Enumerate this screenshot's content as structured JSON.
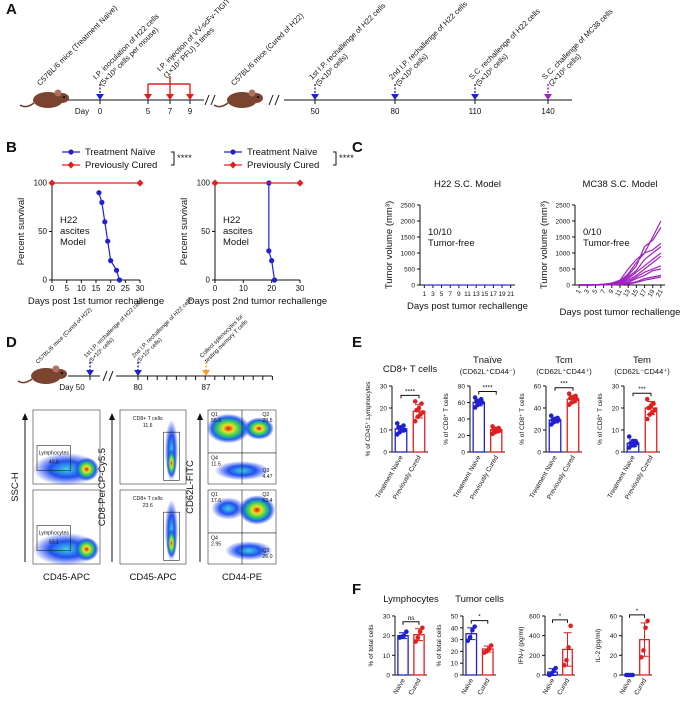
{
  "panel_labels": [
    "A",
    "B",
    "C",
    "D",
    "E",
    "F"
  ],
  "timeline_a": {
    "mice": [
      "C57BL/6 mice (Treatment Naïve)",
      "C57BL/6 mice (Cured of H22)"
    ],
    "day_word": "Day",
    "days": [
      "0",
      "5",
      "7",
      "9",
      "50",
      "80",
      "110",
      "140"
    ],
    "events": [
      {
        "text": [
          "I.P. inoculation of H22 cells",
          "(5×10⁶ cells per mouse)"
        ]
      },
      {
        "text": [
          "I.P. injection of VV-scFv-TIGIT",
          "(1×10⁷ PFU) 3 times"
        ]
      },
      {
        "text": [
          "1st I.P. rechallenge of H22 cells",
          "(5×10⁶ cells)"
        ]
      },
      {
        "text": [
          "2nd I.P. rechallenge of H22 cells",
          "(5×10⁶ cells)"
        ]
      },
      {
        "text": [
          "S.C. rechallenge of H22 cells",
          "(5×10⁶ cells)"
        ]
      },
      {
        "text": [
          "S.C. challenge of MC38 cells",
          "(2×10⁶ cells)"
        ]
      }
    ]
  },
  "timeline_d": {
    "mouse": "C57BL/6 mice (Cured of H22)",
    "days": [
      "Day 50",
      "80",
      "87"
    ],
    "events": [
      {
        "text": [
          "1st I.P. rechallenge of H22 cells",
          "(5×10⁶ cells)"
        ]
      },
      {
        "text": [
          "2nd I.P. rechallenge of H22 cells",
          "(5×10⁶ cells)"
        ]
      },
      {
        "text": [
          "Collect splenocytes for",
          "testing memory T cells"
        ]
      }
    ]
  },
  "flow": {
    "axis_labels": [
      "SSC-H",
      "CD45-APC",
      "CD8-PerCP-Cy5.5",
      "CD45-APC",
      "CD62L-FITC",
      "CD44-PE"
    ],
    "rows": [
      {
        "lymphocytes": [
          "Lymphocytes",
          "40.9"
        ],
        "cd8": [
          "CD8+ T cells",
          "11.6"
        ],
        "quadrants": [
          [
            "Q1",
            "55.5"
          ],
          [
            "Q2",
            "28.5"
          ],
          [
            "Q3",
            "4.47"
          ],
          [
            "Q4",
            "11.5"
          ]
        ]
      },
      {
        "lymphocytes": [
          "Lymphocytes",
          "50.1"
        ],
        "cd8": [
          "CD8+ T cells",
          "23.6"
        ],
        "quadrants": [
          [
            "Q1",
            "17.6"
          ],
          [
            "Q2",
            "53.4"
          ],
          [
            "Q3",
            "26.0"
          ],
          [
            "Q4",
            "2.95"
          ]
        ]
      }
    ]
  },
  "chart_data": [
    {
      "type": "line",
      "xlabel": "Days post 1st tumor rechallenge",
      "ylabel": "Percent survival",
      "annotation": [
        "H22",
        "ascites",
        "Model"
      ],
      "significance": "****",
      "xlim": [
        0,
        30
      ],
      "xticks": [
        0,
        5,
        10,
        15,
        20,
        25,
        30
      ],
      "ylim": [
        0,
        100
      ],
      "yticks": [
        0,
        50,
        100
      ],
      "series": [
        {
          "name": "Treatment Naïve",
          "color": "#2020d0",
          "marker": "circle",
          "x": [
            16,
            17,
            18,
            19,
            20,
            22,
            23
          ],
          "values": [
            90,
            80,
            60,
            40,
            20,
            10,
            0
          ]
        },
        {
          "name": "Previously Cured",
          "color": "#e02020",
          "marker": "diamond",
          "x": [
            0,
            30
          ],
          "values": [
            100,
            100
          ]
        }
      ]
    },
    {
      "type": "line",
      "xlabel": "Days post 2nd tumor rechallenge",
      "ylabel": "Percent survival",
      "annotation": [
        "H22",
        "ascites",
        "Model"
      ],
      "significance": "****",
      "xlim": [
        0,
        30
      ],
      "xticks": [
        0,
        10,
        20,
        30
      ],
      "ylim": [
        0,
        100
      ],
      "yticks": [
        0,
        50,
        100
      ],
      "series": [
        {
          "name": "Treatment Naïve",
          "color": "#2020d0",
          "marker": "circle",
          "x": [
            19,
            19,
            20,
            21
          ],
          "values": [
            100,
            30,
            20,
            0
          ]
        },
        {
          "name": "Previously Cured",
          "color": "#e02020",
          "marker": "diamond",
          "x": [
            0,
            30
          ],
          "values": [
            100,
            100
          ]
        }
      ]
    },
    {
      "type": "line",
      "title": "H22 S.C. Model",
      "xlabel": "Days post tumor rechallenge",
      "ylabel": "Tumor volume (mm³)",
      "annotation": [
        "10/10",
        "Tumor-free"
      ],
      "x": [
        1,
        3,
        5,
        7,
        9,
        11,
        13,
        15,
        17,
        19,
        21
      ],
      "xlim": [
        0,
        22
      ],
      "xticks": [
        1,
        3,
        5,
        7,
        9,
        11,
        13,
        15,
        17,
        19,
        21
      ],
      "ylim": [
        0,
        2500
      ],
      "yticks": [
        0,
        500,
        1000,
        1500,
        2000,
        2500
      ],
      "series": [
        {
          "color": "#3030d0",
          "values": [
            0,
            0,
            0,
            0,
            0,
            0,
            0,
            0,
            0,
            0,
            0
          ]
        }
      ]
    },
    {
      "type": "line",
      "title": "MC38 S.C. Model",
      "xlabel": "Days post tumor rechallenge",
      "ylabel": "Tumor volume (mm³)",
      "annotation": [
        "0/10",
        "Tumor-free"
      ],
      "x": [
        1,
        3,
        5,
        7,
        9,
        11,
        13,
        15,
        17,
        19,
        21
      ],
      "xlim": [
        0,
        22
      ],
      "xticks": [
        1,
        3,
        5,
        7,
        9,
        11,
        13,
        15,
        17,
        19,
        21
      ],
      "ylim": [
        0,
        2500
      ],
      "yticks": [
        0,
        500,
        1000,
        1500,
        2000,
        2500
      ],
      "series": [
        {
          "color": "#a020c0",
          "values": [
            0,
            0,
            10,
            30,
            60,
            150,
            500,
            800,
            1000,
            1500,
            2000
          ]
        },
        {
          "color": "#a020c0",
          "values": [
            0,
            0,
            10,
            20,
            50,
            100,
            300,
            600,
            1200,
            1400,
            1800
          ]
        },
        {
          "color": "#a020c0",
          "values": [
            0,
            0,
            5,
            20,
            40,
            120,
            350,
            700,
            1000,
            1100,
            1300
          ]
        },
        {
          "color": "#a020c0",
          "values": [
            0,
            0,
            5,
            15,
            40,
            80,
            250,
            450,
            800,
            1000,
            1200
          ]
        },
        {
          "color": "#a020c0",
          "values": [
            0,
            0,
            5,
            15,
            30,
            60,
            200,
            400,
            600,
            800,
            1000
          ]
        },
        {
          "color": "#a020c0",
          "values": [
            0,
            0,
            5,
            10,
            30,
            50,
            150,
            300,
            500,
            700,
            900
          ]
        },
        {
          "color": "#a020c0",
          "values": [
            0,
            0,
            5,
            10,
            20,
            40,
            100,
            250,
            400,
            500,
            600
          ]
        },
        {
          "color": "#a020c0",
          "values": [
            0,
            0,
            0,
            10,
            20,
            30,
            80,
            200,
            300,
            450,
            500
          ]
        },
        {
          "color": "#a020c0",
          "values": [
            0,
            0,
            0,
            5,
            10,
            20,
            50,
            100,
            200,
            250,
            300
          ]
        },
        {
          "color": "#a020c0",
          "values": [
            0,
            0,
            0,
            5,
            10,
            15,
            30,
            80,
            150,
            200,
            250
          ]
        }
      ]
    },
    {
      "type": "bar",
      "title": "CD8+ T cells",
      "ylabel": "% of CD45⁺ Lymphocytes",
      "significance": "****",
      "categories": [
        "Treatment Naïve",
        "Previously Cured"
      ],
      "colors": [
        "#2020d0",
        "#e02020"
      ],
      "ylim": [
        0,
        30
      ],
      "yticks": [
        0,
        10,
        20,
        30
      ],
      "values": [
        10.5,
        18.5
      ],
      "errors": [
        1.5,
        3
      ],
      "points": [
        [
          8,
          9,
          10,
          10,
          11,
          11,
          12,
          13
        ],
        [
          14,
          16,
          17,
          18,
          19,
          20,
          22,
          23
        ]
      ]
    },
    {
      "type": "bar",
      "title": "Tnaïve",
      "subtitle": "(CD62L⁺CD44⁻)",
      "ylabel": "% of CD8⁺ T cells",
      "significance": "****",
      "categories": [
        "Treatment Naïve",
        "Previously Cured"
      ],
      "colors": [
        "#2020d0",
        "#e02020"
      ],
      "ylim": [
        0,
        80
      ],
      "yticks": [
        0,
        20,
        40,
        60,
        80
      ],
      "values": [
        60,
        27
      ],
      "errors": [
        4,
        3
      ],
      "points": [
        [
          54,
          57,
          59,
          60,
          61,
          62,
          64,
          66
        ],
        [
          22,
          24,
          25,
          26,
          27,
          28,
          29,
          31
        ]
      ]
    },
    {
      "type": "bar",
      "title": "Tcm",
      "subtitle": "(CD62L⁺CD44⁺)",
      "ylabel": "% of CD8⁺ T cells",
      "significance": "***",
      "categories": [
        "Treatment Naïve",
        "Previously Cured"
      ],
      "colors": [
        "#2020d0",
        "#e02020"
      ],
      "ylim": [
        0,
        60
      ],
      "yticks": [
        0,
        20,
        40,
        60
      ],
      "values": [
        29,
        48
      ],
      "errors": [
        2.5,
        3
      ],
      "points": [
        [
          25,
          27,
          28,
          29,
          29,
          30,
          31,
          33
        ],
        [
          43,
          45,
          46,
          48,
          49,
          50,
          51,
          53
        ]
      ]
    },
    {
      "type": "bar",
      "title": "Tem",
      "subtitle": "(CD62L⁻CD44⁺)",
      "ylabel": "% of CD8⁺ T cells",
      "significance": "***",
      "categories": [
        "Treatment Naïve",
        "Previously Cured"
      ],
      "colors": [
        "#2020d0",
        "#e02020"
      ],
      "ylim": [
        0,
        30
      ],
      "yticks": [
        0,
        10,
        20,
        30
      ],
      "values": [
        4,
        20
      ],
      "errors": [
        1.5,
        3
      ],
      "points": [
        [
          2,
          3,
          3,
          4,
          4,
          5,
          5,
          7
        ],
        [
          15,
          17,
          18,
          19,
          20,
          21,
          22,
          24
        ]
      ]
    },
    {
      "type": "bar",
      "title": "Lymphocytes",
      "ylabel": "% of total cells",
      "significance": "ns",
      "categories": [
        "Naïve",
        "Cured"
      ],
      "colors": [
        "#2020d0",
        "#e02020"
      ],
      "ylim": [
        0,
        30
      ],
      "yticks": [
        0,
        10,
        20,
        30
      ],
      "values": [
        20,
        20.5
      ],
      "errors": [
        1.5,
        3
      ],
      "points": [
        [
          19,
          19.5,
          20,
          22
        ],
        [
          17,
          19,
          22,
          24
        ]
      ]
    },
    {
      "type": "bar",
      "title": "Tumor cells",
      "ylabel": "% of total cells",
      "significance": "*",
      "categories": [
        "Naïve",
        "Cured"
      ],
      "colors": [
        "#2020d0",
        "#e02020"
      ],
      "ylim": [
        0,
        50
      ],
      "yticks": [
        0,
        10,
        20,
        30,
        40,
        50
      ],
      "values": [
        35,
        22
      ],
      "errors": [
        5,
        2.5
      ],
      "points": [
        [
          29,
          32,
          38,
          41
        ],
        [
          19,
          20,
          22,
          25
        ]
      ]
    },
    {
      "type": "bar",
      "ylabel": "IFN-γ (pg/ml)",
      "significance": "*",
      "categories": [
        "Naïve",
        "Cured"
      ],
      "colors": [
        "#2020d0",
        "#e02020"
      ],
      "ylim": [
        0,
        600
      ],
      "yticks": [
        0,
        200,
        400,
        600
      ],
      "values": [
        30,
        260
      ],
      "errors": [
        35,
        170
      ],
      "points": [
        [
          0,
          10,
          40,
          70
        ],
        [
          100,
          150,
          280,
          500
        ]
      ]
    },
    {
      "type": "bar",
      "ylabel": "IL-2 (pg/ml)",
      "significance": "*",
      "categories": [
        "Naïve",
        "Cured"
      ],
      "colors": [
        "#2020d0",
        "#e02020"
      ],
      "ylim": [
        0,
        60
      ],
      "yticks": [
        0,
        20,
        40,
        60
      ],
      "values": [
        0,
        36
      ],
      "errors": [
        0,
        17
      ],
      "points": [
        [
          0,
          0,
          0,
          0
        ],
        [
          18,
          25,
          48,
          55
        ]
      ]
    }
  ]
}
